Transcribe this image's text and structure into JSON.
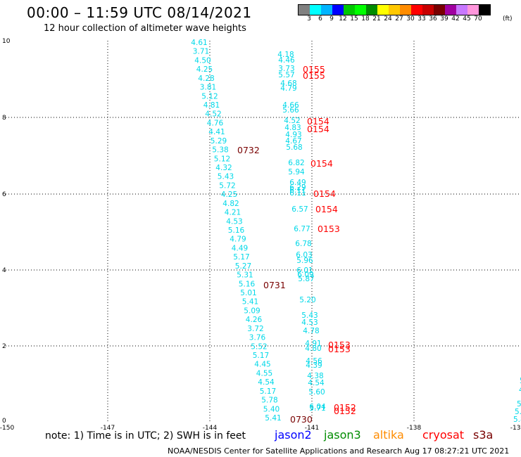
{
  "header": {
    "title": "00:00 – 11:59 UTC 08/14/2021",
    "subtitle": "12 hour collection of altimeter wave heights"
  },
  "colorbar": {
    "colors": [
      "#808080",
      "#00ffff",
      "#00b4ff",
      "#0000ff",
      "#00c800",
      "#00ff00",
      "#008c00",
      "#ffff00",
      "#ffc800",
      "#ff8c00",
      "#ff0000",
      "#c80000",
      "#780000",
      "#a000a0",
      "#c878ff",
      "#ff96dc",
      "#000000"
    ],
    "labels": [
      "3",
      "6",
      "9",
      "12",
      "15",
      "18",
      "21",
      "24",
      "27",
      "30",
      "33",
      "36",
      "39",
      "42",
      "45",
      "70"
    ],
    "unit": "(ft)"
  },
  "axes": {
    "y_ticks": [
      "10",
      "8",
      "6",
      "4",
      "2",
      "0"
    ],
    "x_ticks": [
      "-150",
      "-147",
      "-144",
      "-141",
      "-138",
      "-135"
    ]
  },
  "labels": {
    "track1": [
      "4.61",
      "3.71",
      "4.50",
      "4.25",
      "4.28",
      "3.81",
      "5.12",
      "4.81",
      "4.52",
      "4.76",
      "4.41",
      "5.29",
      "5.38",
      "5.12",
      "4.32",
      "5.43",
      "5.72",
      "4.25",
      "4.82",
      "4.21",
      "4.53",
      "5.16",
      "4.79",
      "4.49",
      "5.17",
      "5.27",
      "5.31",
      "5.16",
      "5.01",
      "5.41",
      "5.09",
      "4.26",
      "3.72",
      "3.76",
      "5.52",
      "5.17",
      "4.45",
      "4.55",
      "4.54",
      "5.17",
      "5.78",
      "5.40",
      "5.41"
    ],
    "track2": [
      "4.18",
      "4.46",
      "3.73",
      "5.57",
      "4.68",
      "4.79",
      "4.66",
      "5.66",
      "4.52",
      "4.83",
      "4.93",
      "4.67",
      "5.68",
      "6.82",
      "5.94",
      "6.49",
      "6.29",
      "6.11",
      "6.11",
      "6.57",
      "6.77",
      "6.78",
      "6.03",
      "5.96",
      "6.01",
      "6.09",
      "5.87",
      "5.20",
      "5.43",
      "4.53",
      "4.78",
      "4.91",
      "4.80",
      "4.56",
      "4.39",
      "4.38",
      "4.54",
      "5.60",
      "6.04",
      "5.71"
    ],
    "edge": [
      "5",
      "4",
      "5.",
      "5.4",
      "5.8"
    ],
    "times_dark": [
      "0732",
      "0731",
      "0730"
    ],
    "times_red": [
      "0155",
      "0155",
      "0154",
      "0154",
      "0154",
      "0154",
      "0154",
      "0153",
      "0153",
      "0153",
      "0152",
      "0152"
    ]
  },
  "footer": {
    "note": "note:  1) Time is in UTC;  2) SWH is in feet",
    "legend": [
      {
        "name": "jason2",
        "color": "#0000ff"
      },
      {
        "name": "jason3",
        "color": "#008c00"
      },
      {
        "name": "altika",
        "color": "#ff8c00"
      },
      {
        "name": "cryosat",
        "color": "#ff0000"
      },
      {
        "name": "s3a",
        "color": "#780000"
      }
    ],
    "credit": "NOAA/NESDIS Center for Satellite Applications and Research    Aug 17 08:27:21 UTC 2021"
  }
}
